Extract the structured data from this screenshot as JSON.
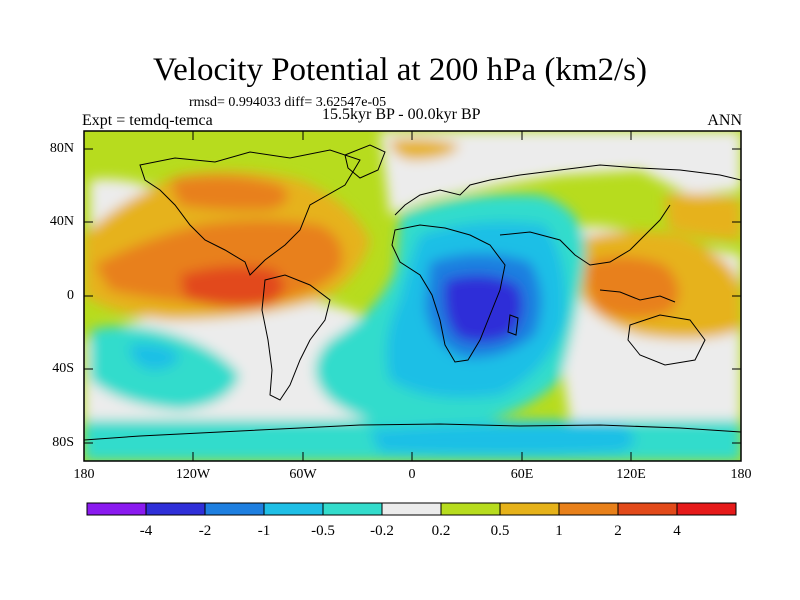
{
  "title": "Velocity Potential at 200 hPa (km2/s)",
  "stats": "rmsd= 0.994033 diff= 3.62547e-05",
  "experiment": "Expt = temdq-temca",
  "period": "15.5kyr BP - 00.0kyr BP",
  "season": "ANN",
  "lat_labels": [
    "80N",
    "40N",
    "0",
    "40S",
    "80S"
  ],
  "lon_labels": [
    "180",
    "120W",
    "60W",
    "0",
    "60E",
    "120E",
    "180"
  ],
  "colorbar": {
    "labels": [
      "-4",
      "-2",
      "-1",
      "-0.5",
      "-0.2",
      "0.2",
      "0.5",
      "1",
      "2",
      "4"
    ],
    "colors": [
      "#8a1aef",
      "#2f2fd8",
      "#1e7fe0",
      "#1fbfe6",
      "#33dccc",
      "#ececec",
      "#b7dc1e",
      "#e6b21a",
      "#e8801a",
      "#e24a1a",
      "#e61a1a"
    ]
  }
}
